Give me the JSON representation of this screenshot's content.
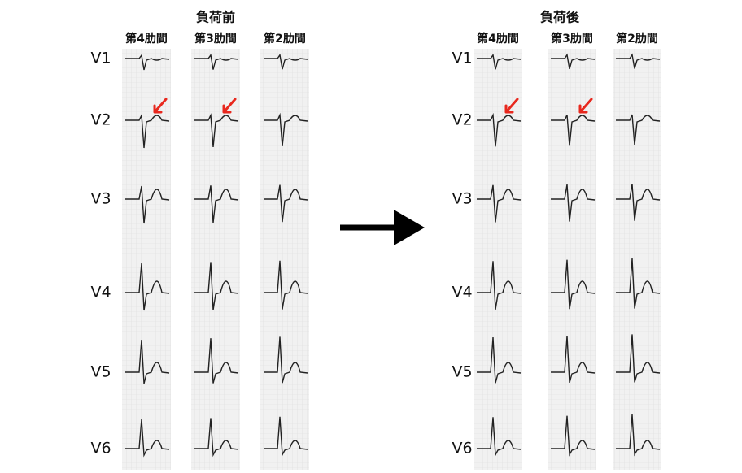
{
  "panels": [
    {
      "title": "負荷前",
      "columns": [
        "第4肋間",
        "第3肋間",
        "第2肋間"
      ],
      "leads": [
        "V1",
        "V2",
        "V3",
        "V4",
        "V5",
        "V6"
      ]
    },
    {
      "title": "負荷後",
      "columns": [
        "第4肋間",
        "第3肋間",
        "第2肋間"
      ],
      "leads": [
        "V1",
        "V2",
        "V3",
        "V4",
        "V5",
        "V6"
      ]
    }
  ]
}
